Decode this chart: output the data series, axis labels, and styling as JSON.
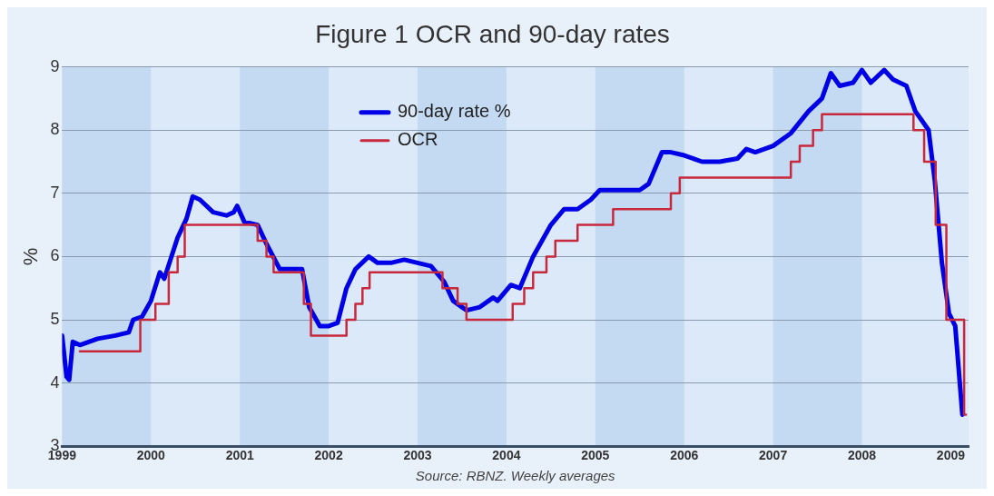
{
  "chart_data": {
    "type": "line",
    "title": "Figure 1 OCR and 90-day rates",
    "ylabel": "%",
    "annotations": [
      "Source: RBNZ. Weekly averages"
    ],
    "xlim": [
      1999,
      2009.2
    ],
    "xticks": [
      1999,
      2000,
      2001,
      2002,
      2003,
      2004,
      2005,
      2006,
      2007,
      2008,
      2009
    ],
    "ylim": [
      3,
      9
    ],
    "yticks": [
      3,
      4,
      5,
      6,
      7,
      8,
      9
    ],
    "grid": "y",
    "legend": "top",
    "marker": "none",
    "line_style": "solid",
    "bands": [
      {
        "axis": "x",
        "from": 1999,
        "to": 2000,
        "color": "#c4daf3"
      },
      {
        "axis": "x",
        "from": 2001,
        "to": 2002,
        "color": "#c4daf3"
      },
      {
        "axis": "x",
        "from": 2003,
        "to": 2004,
        "color": "#c4daf3"
      },
      {
        "axis": "x",
        "from": 2005,
        "to": 2006,
        "color": "#c4daf3"
      },
      {
        "axis": "x",
        "from": 2007,
        "to": 2008,
        "color": "#c4daf3"
      }
    ],
    "series": [
      {
        "name": "90-day rate %",
        "type": "line",
        "color": "#0000e6",
        "x": [
          1999.0,
          1999.05,
          1999.08,
          1999.12,
          1999.2,
          1999.4,
          1999.6,
          1999.75,
          1999.8,
          1999.9,
          2000.0,
          2000.1,
          2000.15,
          2000.3,
          2000.4,
          2000.47,
          2000.55,
          2000.7,
          2000.85,
          2000.93,
          2000.97,
          2001.05,
          2001.2,
          2001.3,
          2001.45,
          2001.6,
          2001.7,
          2001.78,
          2001.9,
          2002.0,
          2002.1,
          2002.2,
          2002.3,
          2002.45,
          2002.55,
          2002.7,
          2002.85,
          2003.0,
          2003.15,
          2003.3,
          2003.4,
          2003.55,
          2003.7,
          2003.85,
          2003.9,
          2004.05,
          2004.15,
          2004.3,
          2004.5,
          2004.65,
          2004.8,
          2004.95,
          2005.05,
          2005.2,
          2005.5,
          2005.6,
          2005.75,
          2005.85,
          2006.0,
          2006.2,
          2006.4,
          2006.6,
          2006.7,
          2006.8,
          2007.0,
          2007.2,
          2007.4,
          2007.55,
          2007.65,
          2007.75,
          2007.9,
          2008.0,
          2008.1,
          2008.25,
          2008.35,
          2008.5,
          2008.6,
          2008.75,
          2008.82,
          2008.9,
          2008.98,
          2009.05,
          2009.13
        ],
        "values": [
          4.75,
          4.1,
          4.05,
          4.65,
          4.6,
          4.7,
          4.75,
          4.8,
          5.0,
          5.05,
          5.3,
          5.75,
          5.65,
          6.3,
          6.6,
          6.95,
          6.9,
          6.7,
          6.65,
          6.7,
          6.8,
          6.55,
          6.5,
          6.2,
          5.8,
          5.8,
          5.8,
          5.2,
          4.9,
          4.9,
          4.95,
          5.5,
          5.8,
          6.0,
          5.9,
          5.9,
          5.95,
          5.9,
          5.85,
          5.6,
          5.3,
          5.15,
          5.2,
          5.35,
          5.3,
          5.55,
          5.5,
          6.0,
          6.5,
          6.75,
          6.75,
          6.9,
          7.05,
          7.05,
          7.05,
          7.15,
          7.65,
          7.65,
          7.6,
          7.5,
          7.5,
          7.55,
          7.7,
          7.65,
          7.75,
          7.95,
          8.3,
          8.5,
          8.9,
          8.7,
          8.75,
          8.95,
          8.75,
          8.95,
          8.8,
          8.7,
          8.3,
          8.0,
          7.2,
          5.9,
          5.1,
          4.9,
          3.5
        ]
      },
      {
        "name": "OCR",
        "type": "step",
        "color": "#c8283c",
        "x": [
          1999.2,
          1999.88,
          2000.05,
          2000.2,
          2000.3,
          2000.38,
          2001.2,
          2001.3,
          2001.38,
          2001.72,
          2001.8,
          2002.2,
          2002.3,
          2002.38,
          2002.46,
          2003.28,
          2003.45,
          2003.55,
          2004.07,
          2004.2,
          2004.3,
          2004.45,
          2004.55,
          2004.8,
          2005.2,
          2005.85,
          2005.95,
          2007.2,
          2007.3,
          2007.45,
          2007.55,
          2008.58,
          2008.7,
          2008.83,
          2008.95,
          2009.15,
          2009.17
        ],
        "values": [
          4.5,
          5.0,
          5.25,
          5.75,
          6.0,
          6.5,
          6.25,
          6.0,
          5.75,
          5.25,
          4.75,
          5.0,
          5.25,
          5.5,
          5.75,
          5.5,
          5.25,
          5.0,
          5.25,
          5.5,
          5.75,
          6.0,
          6.25,
          6.5,
          6.75,
          7.0,
          7.25,
          7.5,
          7.75,
          8.0,
          8.25,
          8.0,
          7.5,
          6.5,
          5.0,
          3.5,
          3.5
        ]
      }
    ]
  }
}
